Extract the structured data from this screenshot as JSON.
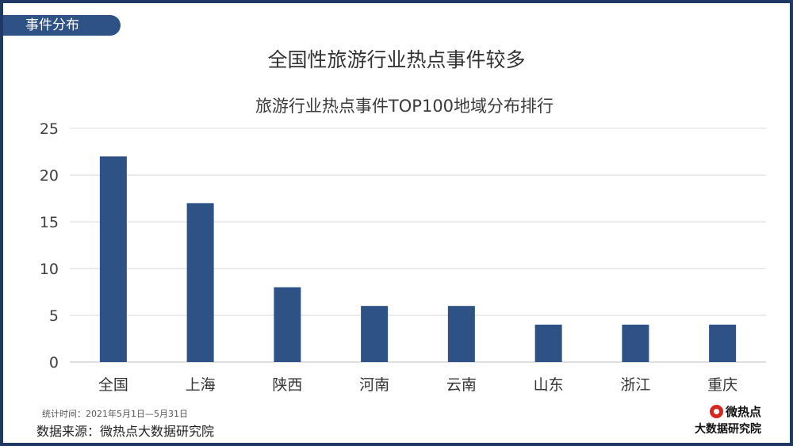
{
  "header": {
    "tag_label": "事件分布"
  },
  "main_title": "全国性旅游行业热点事件较多",
  "footer": {
    "note": "统计时间：2021年5月1日—5月31日",
    "source": "数据来源：微热点大数据研究院",
    "logo_name": "微热点",
    "logo_sub": "大数据研究院"
  },
  "colors": {
    "bar": "#2f5286",
    "grid": "#d9d9d9",
    "border": "#1f3864"
  },
  "chart_data": {
    "type": "bar",
    "title": "旅游行业热点事件TOP100地域分布排行",
    "xlabel": "",
    "ylabel": "",
    "categories": [
      "全国",
      "上海",
      "陕西",
      "河南",
      "云南",
      "山东",
      "浙江",
      "重庆"
    ],
    "values": [
      22,
      17,
      8,
      6,
      6,
      4,
      4,
      4
    ],
    "ylim": [
      0,
      25
    ],
    "yticks": [
      0,
      5,
      10,
      15,
      20,
      25
    ],
    "grid": true,
    "legend": "none"
  }
}
